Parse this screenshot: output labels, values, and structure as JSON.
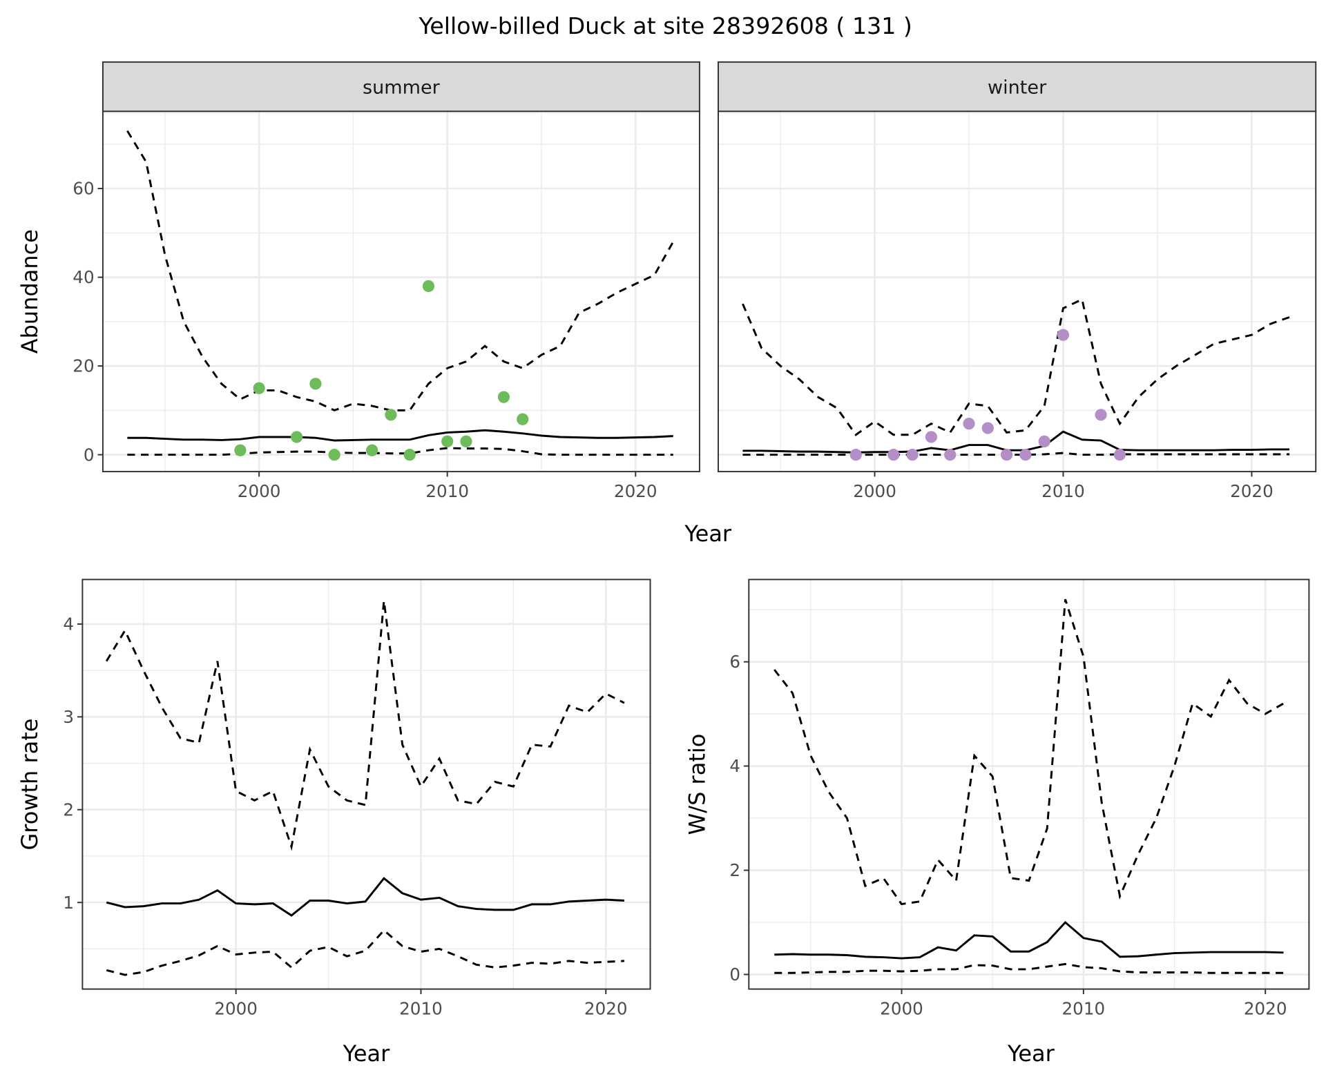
{
  "title": "Yellow-billed Duck at site 28392608 ( 131 )",
  "colors": {
    "summer_points": "#6dbb5a",
    "winter_points": "#b48fc7",
    "strip_fill": "#d9d9d9",
    "grid": "#ebebeb",
    "border": "#333333"
  },
  "chart_data": [
    {
      "id": "summer",
      "type": "line",
      "strip": "summer",
      "xlabel": "",
      "ylabel": "Abundance",
      "xlim": [
        1991.7,
        2023.4
      ],
      "ylim": [
        -3.8,
        77.4
      ],
      "xticks": [
        2000,
        2010,
        2020
      ],
      "yticks": [
        0,
        20,
        40,
        60
      ],
      "x": [
        1993,
        1994,
        1995,
        1996,
        1997,
        1998,
        1999,
        2000,
        2001,
        2002,
        2003,
        2004,
        2005,
        2006,
        2007,
        2008,
        2009,
        2010,
        2011,
        2012,
        2013,
        2014,
        2015,
        2016,
        2017,
        2018,
        2019,
        2020,
        2021,
        2022
      ],
      "upper": [
        73,
        66,
        45,
        30,
        22,
        16,
        12.5,
        14.5,
        14.5,
        13,
        12,
        10,
        11.5,
        11,
        10,
        10,
        16,
        19.5,
        21,
        24.5,
        21,
        19.5,
        22.5,
        24.5,
        32,
        34,
        36.5,
        38.5,
        40.5,
        48
      ],
      "mean": [
        3.8,
        3.8,
        3.6,
        3.4,
        3.4,
        3.3,
        3.5,
        4.0,
        4.0,
        4.0,
        3.8,
        3.2,
        3.3,
        3.4,
        3.4,
        3.4,
        4.4,
        5.0,
        5.2,
        5.5,
        5.2,
        4.8,
        4.3,
        4.0,
        3.9,
        3.8,
        3.8,
        3.9,
        4.0,
        4.2
      ],
      "lower": [
        0,
        0,
        0,
        0,
        0,
        0,
        0.2,
        0.5,
        0.6,
        0.7,
        0.7,
        0.5,
        0.4,
        0.4,
        0.3,
        0.3,
        1.0,
        1.5,
        1.4,
        1.4,
        1.3,
        0.8,
        0.1,
        0,
        0,
        0,
        0,
        0,
        0,
        0
      ],
      "points": {
        "x": [
          1999,
          2000,
          2002,
          2003,
          2004,
          2006,
          2007,
          2008,
          2009,
          2010,
          2011,
          2013,
          2014
        ],
        "y": [
          1,
          15,
          4,
          16,
          0,
          1,
          9,
          0,
          38,
          3,
          3,
          13,
          8
        ]
      }
    },
    {
      "id": "winter",
      "type": "line",
      "strip": "winter",
      "xlabel": "Year",
      "ylabel": "",
      "xlim": [
        1991.7,
        2023.4
      ],
      "ylim": [
        -3.8,
        77.4
      ],
      "xticks": [
        2000,
        2010,
        2020
      ],
      "yticks": [
        0,
        20,
        40,
        60
      ],
      "x": [
        1993,
        1994,
        1995,
        1996,
        1997,
        1998,
        1999,
        2000,
        2001,
        2002,
        2003,
        2004,
        2005,
        2006,
        2007,
        2008,
        2009,
        2010,
        2011,
        2012,
        2013,
        2014,
        2015,
        2016,
        2017,
        2018,
        2019,
        2020,
        2021,
        2022
      ],
      "upper": [
        34,
        24,
        20,
        17,
        13,
        10.5,
        4.5,
        7.5,
        4.5,
        4.5,
        7,
        5,
        11.5,
        11,
        5,
        5.5,
        11,
        33,
        35,
        16,
        7,
        13,
        17,
        20,
        22.5,
        25,
        26,
        27,
        29.5,
        31
      ],
      "mean": [
        0.9,
        0.9,
        0.8,
        0.7,
        0.7,
        0.6,
        0.5,
        0.6,
        0.6,
        0.7,
        1.5,
        1.0,
        2.2,
        2.2,
        1.0,
        1.0,
        2.0,
        5.2,
        3.4,
        3.2,
        1.1,
        1.0,
        1.0,
        1.0,
        1.0,
        1.0,
        1.1,
        1.1,
        1.2,
        1.2
      ],
      "lower": [
        0,
        0,
        0,
        0,
        0,
        0,
        0,
        0,
        0,
        0,
        0,
        0,
        0,
        0,
        0,
        0,
        0.1,
        0.4,
        0,
        0,
        0.1,
        0.1,
        0.1,
        0.1,
        0.1,
        0.1,
        0.1,
        0.1,
        0.1,
        0.1
      ],
      "points": {
        "x": [
          1999,
          2001,
          2002,
          2003,
          2004,
          2005,
          2006,
          2007,
          2008,
          2009,
          2010,
          2012,
          2013
        ],
        "y": [
          0,
          0,
          0,
          4,
          0,
          7,
          6,
          0,
          0,
          3,
          27,
          9,
          0
        ]
      }
    },
    {
      "id": "growth",
      "type": "line",
      "xlabel": "Year",
      "ylabel": "Growth rate",
      "xlim": [
        1991.7,
        2022.4
      ],
      "ylim": [
        0.067,
        4.48
      ],
      "xticks": [
        2000,
        2010,
        2020
      ],
      "yticks": [
        1,
        2,
        3,
        4
      ],
      "x": [
        1993,
        1994,
        1995,
        1996,
        1997,
        1998,
        1999,
        2000,
        2001,
        2002,
        2003,
        2004,
        2005,
        2006,
        2007,
        2008,
        2009,
        2010,
        2011,
        2012,
        2013,
        2014,
        2015,
        2016,
        2017,
        2018,
        2019,
        2020,
        2021
      ],
      "upper": [
        3.6,
        3.93,
        3.5,
        3.1,
        2.77,
        2.72,
        3.6,
        2.2,
        2.1,
        2.2,
        1.6,
        2.65,
        2.25,
        2.1,
        2.05,
        4.25,
        2.7,
        2.25,
        2.55,
        2.1,
        2.06,
        2.3,
        2.25,
        2.7,
        2.68,
        3.12,
        3.05,
        3.25,
        3.15
      ],
      "mean": [
        1.0,
        0.95,
        0.96,
        0.99,
        0.99,
        1.03,
        1.13,
        0.99,
        0.98,
        0.99,
        0.86,
        1.02,
        1.02,
        0.99,
        1.01,
        1.26,
        1.1,
        1.03,
        1.05,
        0.96,
        0.93,
        0.92,
        0.92,
        0.98,
        0.98,
        1.01,
        1.02,
        1.03,
        1.02
      ],
      "lower": [
        0.27,
        0.22,
        0.25,
        0.32,
        0.37,
        0.43,
        0.53,
        0.44,
        0.46,
        0.47,
        0.3,
        0.48,
        0.52,
        0.42,
        0.48,
        0.7,
        0.53,
        0.47,
        0.5,
        0.42,
        0.33,
        0.3,
        0.32,
        0.35,
        0.34,
        0.37,
        0.35,
        0.36,
        0.37
      ]
    },
    {
      "id": "ratio",
      "type": "line",
      "xlabel": "Year",
      "ylabel": "W/S ratio",
      "xlim": [
        1991.6,
        2022.4
      ],
      "ylim": [
        -0.28,
        7.58
      ],
      "xticks": [
        2000,
        2010,
        2020
      ],
      "yticks": [
        0,
        2,
        4,
        6
      ],
      "x": [
        1993,
        1994,
        1995,
        1996,
        1997,
        1998,
        1999,
        2000,
        2001,
        2002,
        2003,
        2004,
        2005,
        2006,
        2007,
        2008,
        2009,
        2010,
        2011,
        2012,
        2013,
        2014,
        2015,
        2016,
        2017,
        2018,
        2019,
        2020,
        2021
      ],
      "upper": [
        5.85,
        5.4,
        4.2,
        3.5,
        3.0,
        1.7,
        1.85,
        1.35,
        1.4,
        2.2,
        1.8,
        4.2,
        3.8,
        1.85,
        1.8,
        2.8,
        7.2,
        6.1,
        3.3,
        1.5,
        2.3,
        3.0,
        4.0,
        5.2,
        4.95,
        5.65,
        5.2,
        5.0,
        5.2
      ],
      "mean": [
        0.38,
        0.39,
        0.38,
        0.38,
        0.37,
        0.34,
        0.33,
        0.31,
        0.33,
        0.52,
        0.46,
        0.75,
        0.73,
        0.44,
        0.44,
        0.62,
        1.0,
        0.7,
        0.63,
        0.34,
        0.35,
        0.38,
        0.41,
        0.42,
        0.43,
        0.43,
        0.43,
        0.43,
        0.42
      ],
      "lower": [
        0.03,
        0.03,
        0.04,
        0.05,
        0.05,
        0.07,
        0.07,
        0.06,
        0.07,
        0.1,
        0.1,
        0.18,
        0.17,
        0.1,
        0.1,
        0.15,
        0.2,
        0.14,
        0.12,
        0.06,
        0.04,
        0.04,
        0.04,
        0.04,
        0.03,
        0.03,
        0.03,
        0.03,
        0.03
      ]
    }
  ]
}
